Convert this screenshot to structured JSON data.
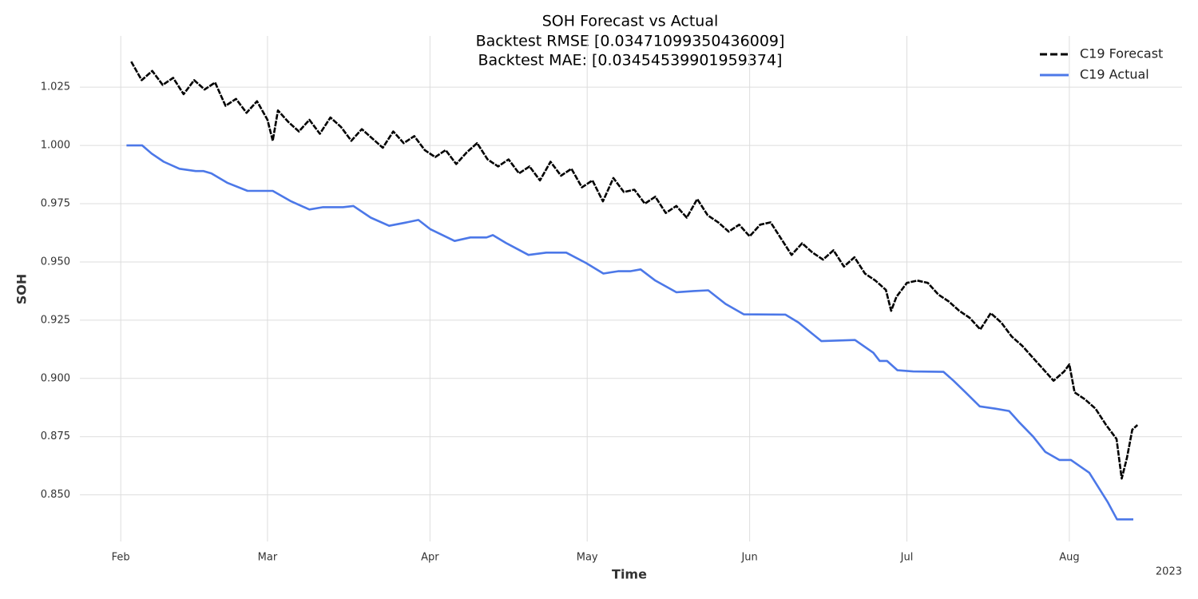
{
  "chart_data": {
    "type": "line",
    "title": [
      "SOH Forecast vs Actual",
      "Backtest RMSE [0.03471099350436009]",
      "Backtest MAE: [0.03454539901959374]"
    ],
    "x_label": "Time",
    "y_label": "SOH",
    "x_year_label": "2023",
    "xlim": [
      23.2,
      233.5
    ],
    "xticks": [
      {
        "value": 31,
        "label": "Feb"
      },
      {
        "value": 59,
        "label": "Mar"
      },
      {
        "value": 90,
        "label": "Apr"
      },
      {
        "value": 120,
        "label": "May"
      },
      {
        "value": 151,
        "label": "Jun"
      },
      {
        "value": 181,
        "label": "Jul"
      },
      {
        "value": 212,
        "label": "Aug"
      }
    ],
    "ylim": [
      0.83,
      1.047
    ],
    "yticks": [
      {
        "value": 0.85,
        "label": "0.850"
      },
      0.875,
      {
        "value": 0.9,
        "label": "0.900"
      },
      0.925,
      {
        "value": 0.95,
        "label": "0.950"
      },
      0.975,
      {
        "value": 1.0,
        "label": "1.000"
      },
      1.025
    ],
    "grid": true,
    "legend": "upper right",
    "series": [
      {
        "name": "C19 Forecast",
        "color": "#000000",
        "dashed": true,
        "x": [
          33,
          35,
          37,
          39,
          41,
          43,
          45,
          47,
          49,
          51,
          53,
          55,
          57,
          59,
          60,
          61,
          63,
          65,
          67,
          69,
          71,
          73,
          75,
          77,
          79,
          81,
          83,
          85,
          87,
          89,
          91,
          93,
          95,
          97,
          99,
          101,
          103,
          105,
          107,
          109,
          111,
          113,
          115,
          117,
          119,
          121,
          123,
          125,
          127,
          129,
          131,
          133,
          135,
          137,
          139,
          141,
          143,
          145,
          147,
          149,
          151,
          153,
          155,
          157,
          159,
          161,
          163,
          165,
          167,
          169,
          171,
          173,
          175,
          177,
          178,
          179,
          181,
          183,
          185,
          187,
          189,
          191,
          193,
          195,
          197,
          199,
          201,
          203,
          205,
          207,
          209,
          211,
          212,
          213,
          215,
          217,
          219,
          221,
          222,
          223,
          224,
          225
        ],
        "values": [
          1.036,
          1.028,
          1.032,
          1.026,
          1.029,
          1.022,
          1.028,
          1.024,
          1.027,
          1.017,
          1.02,
          1.014,
          1.019,
          1.011,
          1.002,
          1.015,
          1.01,
          1.006,
          1.011,
          1.005,
          1.012,
          1.008,
          1.002,
          1.007,
          1.003,
          0.999,
          1.006,
          1.001,
          1.004,
          0.998,
          0.995,
          0.998,
          0.992,
          0.997,
          1.001,
          0.994,
          0.991,
          0.994,
          0.988,
          0.991,
          0.985,
          0.993,
          0.987,
          0.99,
          0.982,
          0.985,
          0.976,
          0.986,
          0.98,
          0.981,
          0.975,
          0.978,
          0.971,
          0.974,
          0.969,
          0.977,
          0.97,
          0.967,
          0.963,
          0.966,
          0.961,
          0.966,
          0.967,
          0.96,
          0.953,
          0.958,
          0.954,
          0.951,
          0.955,
          0.948,
          0.952,
          0.945,
          0.942,
          0.938,
          0.929,
          0.935,
          0.941,
          0.942,
          0.941,
          0.936,
          0.933,
          0.929,
          0.926,
          0.921,
          0.928,
          0.924,
          0.918,
          0.914,
          0.909,
          0.904,
          0.899,
          0.903,
          0.906,
          0.894,
          0.891,
          0.887,
          0.88,
          0.874,
          0.857,
          0.866,
          0.878,
          0.88
        ]
      },
      {
        "name": "C19 Actual",
        "color": "#4c78e8",
        "dashed": false,
        "x": [
          32.1,
          35.1,
          36.9,
          39.2,
          42.2,
          45.3,
          46.8,
          48.3,
          51.3,
          55.2,
          60.0,
          63.5,
          67.0,
          69.6,
          73.4,
          75.4,
          78.7,
          82.2,
          85.6,
          87.8,
          90.1,
          94.7,
          97.7,
          100.8,
          102.0,
          104.6,
          108.8,
          112.2,
          116.0,
          119.8,
          123.1,
          125.9,
          128.2,
          130.2,
          133.0,
          137.0,
          140.3,
          143.1,
          146.4,
          149.9,
          157.8,
          160.3,
          164.7,
          171.1,
          174.6,
          175.8,
          177.2,
          179.2,
          182.2,
          188.0,
          189.9,
          192.2,
          194.9,
          197.9,
          200.5,
          202.5,
          205.1,
          207.4,
          210.1,
          212.3,
          215.8,
          219.3,
          221.1,
          224.2
        ],
        "values": [
          1.0,
          1.0,
          0.9965,
          0.993,
          0.99,
          0.989,
          0.989,
          0.988,
          0.984,
          0.9805,
          0.9805,
          0.976,
          0.9725,
          0.9735,
          0.9735,
          0.974,
          0.969,
          0.9655,
          0.967,
          0.968,
          0.964,
          0.959,
          0.9605,
          0.9605,
          0.9615,
          0.958,
          0.953,
          0.954,
          0.954,
          0.9495,
          0.945,
          0.946,
          0.946,
          0.9468,
          0.942,
          0.937,
          0.9375,
          0.9378,
          0.932,
          0.9275,
          0.9274,
          0.924,
          0.916,
          0.9165,
          0.911,
          0.9075,
          0.9075,
          0.9035,
          0.903,
          0.9028,
          0.899,
          0.894,
          0.888,
          0.887,
          0.886,
          0.881,
          0.875,
          0.8685,
          0.865,
          0.865,
          0.8595,
          0.847,
          0.8395,
          0.8395
        ]
      }
    ]
  }
}
